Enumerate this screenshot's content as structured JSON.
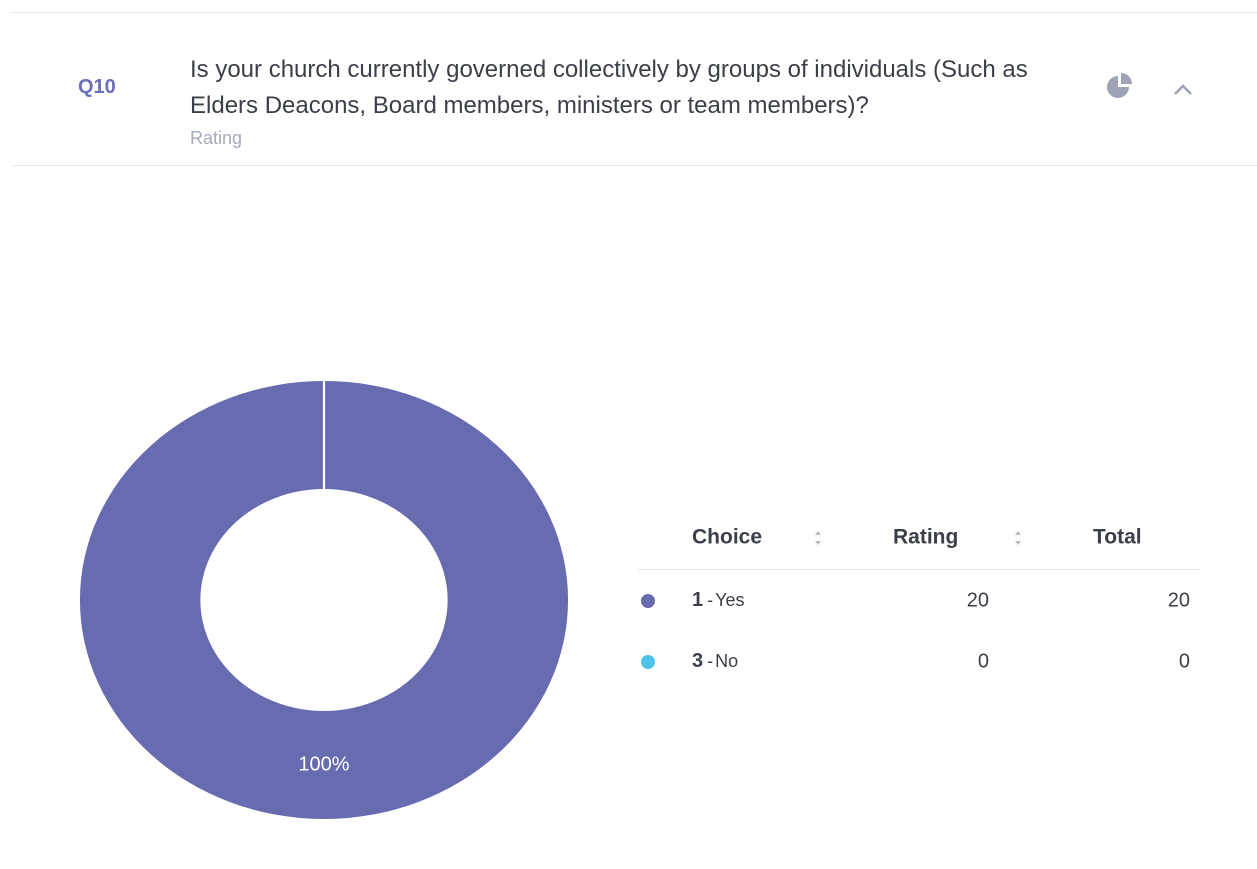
{
  "header": {
    "number": "Q10",
    "question_lines": [
      "Is your church currently governed collectively by groups of individuals (Such as",
      "Elders Deacons, Board members, ministers or team members)?"
    ],
    "type": "Rating"
  },
  "chart_data": {
    "type": "donut",
    "values": [
      100,
      0
    ],
    "value_labels": [
      "100%",
      null
    ],
    "colors": [
      "#676bb0",
      "#4dc3e8"
    ]
  },
  "table": {
    "columns": [
      "Choice",
      "Rating",
      "Total"
    ],
    "separator": "-",
    "rows": [
      {
        "key": "1",
        "label": "Yes",
        "rating": 20,
        "total": 20
      },
      {
        "key": "3",
        "label": "No",
        "rating": 0,
        "total": 0
      }
    ]
  }
}
